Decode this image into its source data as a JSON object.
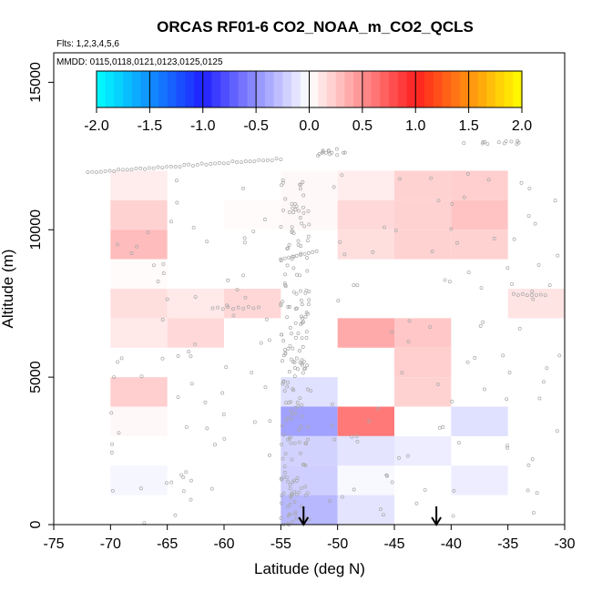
{
  "chart_data": {
    "type": "heatmap",
    "title": "ORCAS RF01-6 CO2_NOAA_m_CO2_QCLS",
    "flights_label": "Flts: 1,2,3,4,5,6",
    "dates_label": "MMDD: 0115,0118,0121,0123,0125,0125",
    "xlabel": "Latitude (deg N)",
    "ylabel": "Altitude (m)",
    "xlim": [
      -75,
      -30
    ],
    "ylim": [
      0,
      16000
    ],
    "x_ticks": [
      -75,
      -70,
      -65,
      -60,
      -55,
      -50,
      -45,
      -40,
      -35,
      -30
    ],
    "y_ticks": [
      0,
      5000,
      10000,
      15000
    ],
    "colorbar": {
      "range": [
        -2.0,
        2.0
      ],
      "ticks": [
        "-2.0",
        "-1.5",
        "-1.0",
        "-0.5",
        "0.0",
        "0.5",
        "1.0",
        "1.5",
        "2.0"
      ],
      "colors": [
        "#00ffff",
        "#2020ff",
        "#ffffff",
        "#ff2020",
        "#ffff00"
      ]
    },
    "cells": [
      {
        "lat": [
          -70,
          -65
        ],
        "alt": [
          11000,
          12000
        ],
        "value": 0.08
      },
      {
        "lat": [
          -70,
          -65
        ],
        "alt": [
          10000,
          11000
        ],
        "value": 0.2
      },
      {
        "lat": [
          -70,
          -65
        ],
        "alt": [
          9000,
          10000
        ],
        "value": 0.3
      },
      {
        "lat": [
          -70,
          -65
        ],
        "alt": [
          8000,
          9000
        ],
        "value": 0.02
      },
      {
        "lat": [
          -70,
          -65
        ],
        "alt": [
          7000,
          8000
        ],
        "value": 0.15
      },
      {
        "lat": [
          -70,
          -65
        ],
        "alt": [
          6000,
          7000
        ],
        "value": 0.1
      },
      {
        "lat": [
          -70,
          -65
        ],
        "alt": [
          4000,
          5000
        ],
        "value": 0.22
      },
      {
        "lat": [
          -70,
          -65
        ],
        "alt": [
          3000,
          4000
        ],
        "value": 0.03
      },
      {
        "lat": [
          -70,
          -65
        ],
        "alt": [
          1000,
          2000
        ],
        "value": -0.04
      },
      {
        "lat": [
          -65,
          -60
        ],
        "alt": [
          7000,
          8000
        ],
        "value": 0.1
      },
      {
        "lat": [
          -65,
          -60
        ],
        "alt": [
          6000,
          7000
        ],
        "value": 0.17
      },
      {
        "lat": [
          -60,
          -55
        ],
        "alt": [
          10000,
          11000
        ],
        "value": 0.02
      },
      {
        "lat": [
          -60,
          -55
        ],
        "alt": [
          7000,
          8000
        ],
        "value": 0.18
      },
      {
        "lat": [
          -55,
          -50
        ],
        "alt": [
          11000,
          12000
        ],
        "value": 0.03
      },
      {
        "lat": [
          -55,
          -50
        ],
        "alt": [
          10000,
          11000
        ],
        "value": 0.03
      },
      {
        "lat": [
          -55,
          -50
        ],
        "alt": [
          4000,
          5000
        ],
        "value": -0.14
      },
      {
        "lat": [
          -55,
          -50
        ],
        "alt": [
          3000,
          4000
        ],
        "value": -0.42
      },
      {
        "lat": [
          -55,
          -50
        ],
        "alt": [
          2000,
          3000
        ],
        "value": -0.2
      },
      {
        "lat": [
          -55,
          -50
        ],
        "alt": [
          1000,
          2000
        ],
        "value": -0.22
      },
      {
        "lat": [
          -55,
          -50
        ],
        "alt": [
          0,
          1000
        ],
        "value": -0.32
      },
      {
        "lat": [
          -50,
          -45
        ],
        "alt": [
          11000,
          12000
        ],
        "value": 0.08
      },
      {
        "lat": [
          -50,
          -45
        ],
        "alt": [
          10000,
          11000
        ],
        "value": 0.17
      },
      {
        "lat": [
          -50,
          -45
        ],
        "alt": [
          9000,
          10000
        ],
        "value": 0.15
      },
      {
        "lat": [
          -50,
          -45
        ],
        "alt": [
          6000,
          7000
        ],
        "value": 0.38
      },
      {
        "lat": [
          -50,
          -45
        ],
        "alt": [
          3000,
          4000
        ],
        "value": 0.6
      },
      {
        "lat": [
          -50,
          -45
        ],
        "alt": [
          2000,
          3000
        ],
        "value": -0.12
      },
      {
        "lat": [
          -50,
          -45
        ],
        "alt": [
          1000,
          2000
        ],
        "value": -0.03
      },
      {
        "lat": [
          -50,
          -45
        ],
        "alt": [
          0,
          1000
        ],
        "value": -0.12
      },
      {
        "lat": [
          -45,
          -40
        ],
        "alt": [
          11000,
          12000
        ],
        "value": 0.2
      },
      {
        "lat": [
          -45,
          -40
        ],
        "alt": [
          10000,
          11000
        ],
        "value": 0.2
      },
      {
        "lat": [
          -45,
          -40
        ],
        "alt": [
          9000,
          10000
        ],
        "value": 0.2
      },
      {
        "lat": [
          -45,
          -40
        ],
        "alt": [
          6000,
          7000
        ],
        "value": 0.25
      },
      {
        "lat": [
          -45,
          -40
        ],
        "alt": [
          5000,
          6000
        ],
        "value": 0.22
      },
      {
        "lat": [
          -45,
          -40
        ],
        "alt": [
          4000,
          5000
        ],
        "value": 0.2
      },
      {
        "lat": [
          -45,
          -40
        ],
        "alt": [
          2000,
          3000
        ],
        "value": -0.08
      },
      {
        "lat": [
          -40,
          -35
        ],
        "alt": [
          11000,
          12000
        ],
        "value": 0.22
      },
      {
        "lat": [
          -40,
          -35
        ],
        "alt": [
          10000,
          11000
        ],
        "value": 0.27
      },
      {
        "lat": [
          -40,
          -35
        ],
        "alt": [
          9000,
          10000
        ],
        "value": 0.2
      },
      {
        "lat": [
          -40,
          -35
        ],
        "alt": [
          3000,
          4000
        ],
        "value": -0.14
      },
      {
        "lat": [
          -40,
          -35
        ],
        "alt": [
          1000,
          2000
        ],
        "value": -0.08
      },
      {
        "lat": [
          -35,
          -30
        ],
        "alt": [
          7000,
          8000
        ],
        "value": 0.12
      }
    ],
    "arrows_at_lat": [
      -53,
      -41.3
    ]
  }
}
